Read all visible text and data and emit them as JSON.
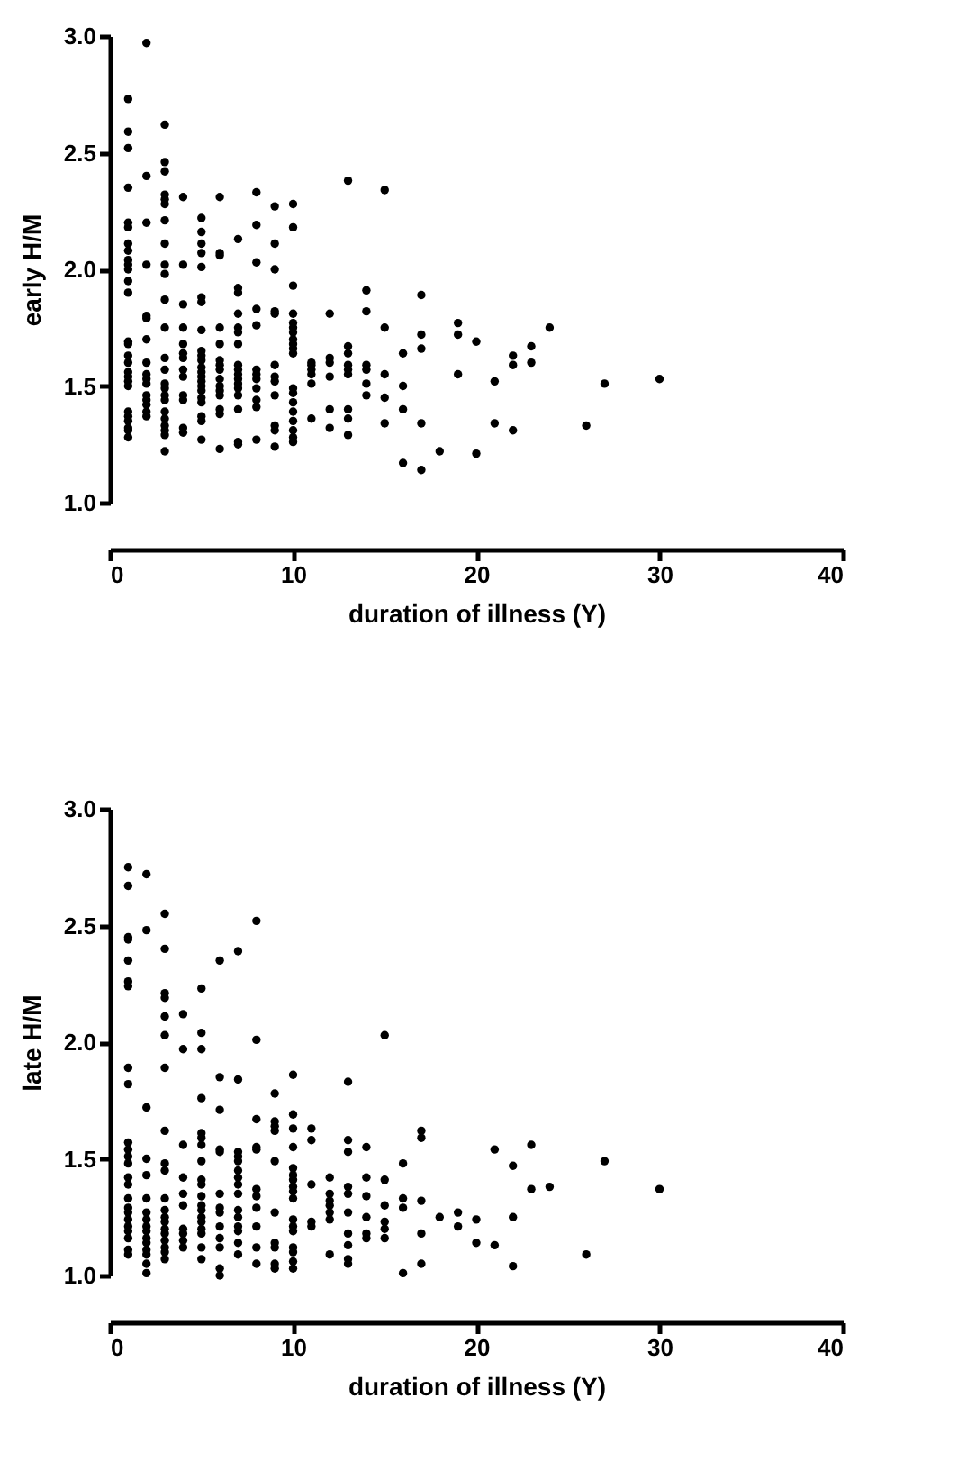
{
  "chart_data": [
    {
      "type": "scatter",
      "xlabel": "duration of illness  (Y)",
      "ylabel": "early H/M",
      "color": "#000000",
      "marker": "circle",
      "grid": false,
      "xlim": [
        0,
        40
      ],
      "xticks": [
        0,
        10,
        20,
        30,
        40
      ],
      "ylim": [
        1.0,
        3.0
      ],
      "yticks": [
        {
          "value": 1.0,
          "label": "1.0"
        },
        {
          "value": 1.5,
          "label": "1.5"
        },
        {
          "value": 2.0,
          "label": "2.0"
        },
        {
          "value": 2.5,
          "label": "2.5"
        },
        {
          "value": 3.0,
          "label": "3.0"
        }
      ],
      "x": [
        1,
        1,
        1,
        1,
        1,
        1,
        1,
        1,
        1,
        1,
        1,
        1,
        1,
        1,
        1,
        1,
        1,
        1,
        1,
        1,
        1,
        1,
        1,
        1,
        1,
        1,
        1,
        2,
        2,
        2,
        2,
        2,
        2,
        2,
        2,
        2,
        2,
        2,
        2,
        2,
        2,
        2,
        2,
        3,
        3,
        3,
        3,
        3,
        3,
        3,
        3,
        3,
        3,
        3,
        3,
        3,
        3,
        3,
        3,
        3,
        3,
        3,
        3,
        3,
        3,
        3,
        3,
        4,
        4,
        4,
        4,
        4,
        4,
        4,
        4,
        4,
        4,
        4,
        4,
        4,
        5,
        5,
        5,
        5,
        5,
        5,
        5,
        5,
        5,
        5,
        5,
        5,
        5,
        5,
        5,
        5,
        5,
        5,
        5,
        5,
        5,
        5,
        6,
        6,
        6,
        6,
        6,
        6,
        6,
        6,
        6,
        6,
        6,
        6,
        6,
        6,
        6,
        7,
        7,
        7,
        7,
        7,
        7,
        7,
        7,
        7,
        7,
        7,
        7,
        7,
        7,
        7,
        7,
        7,
        8,
        8,
        8,
        8,
        8,
        8,
        8,
        8,
        8,
        8,
        8,
        8,
        9,
        9,
        9,
        9,
        9,
        9,
        9,
        9,
        9,
        9,
        9,
        9,
        10,
        10,
        10,
        10,
        10,
        10,
        10,
        10,
        10,
        10,
        10,
        10,
        10,
        10,
        10,
        10,
        10,
        10,
        10,
        11,
        11,
        11,
        11,
        11,
        11,
        12,
        12,
        12,
        12,
        12,
        12,
        13,
        13,
        13,
        13,
        13,
        13,
        13,
        13,
        13,
        14,
        14,
        14,
        14,
        14,
        14,
        15,
        15,
        15,
        15,
        15,
        16,
        16,
        16,
        16,
        17,
        17,
        17,
        17,
        17,
        18,
        19,
        19,
        19,
        20,
        20,
        21,
        21,
        22,
        22,
        22,
        23,
        23,
        24,
        26,
        27,
        30
      ],
      "values": [
        2.73,
        2.59,
        2.52,
        2.35,
        2.2,
        2.18,
        2.11,
        2.08,
        2.04,
        2.02,
        2.0,
        1.95,
        1.9,
        1.69,
        1.68,
        1.63,
        1.6,
        1.56,
        1.54,
        1.52,
        1.5,
        1.39,
        1.37,
        1.35,
        1.32,
        1.31,
        1.28,
        2.97,
        2.4,
        2.2,
        2.02,
        1.8,
        1.79,
        1.7,
        1.6,
        1.55,
        1.53,
        1.51,
        1.46,
        1.44,
        1.42,
        1.39,
        1.37,
        2.62,
        2.46,
        2.42,
        2.32,
        2.3,
        2.28,
        2.21,
        2.11,
        2.02,
        1.98,
        1.87,
        1.75,
        1.62,
        1.57,
        1.51,
        1.49,
        1.46,
        1.44,
        1.39,
        1.36,
        1.33,
        1.31,
        1.29,
        1.22,
        2.31,
        2.02,
        1.85,
        1.75,
        1.68,
        1.64,
        1.62,
        1.57,
        1.54,
        1.46,
        1.44,
        1.32,
        1.3,
        2.22,
        2.16,
        2.11,
        2.07,
        2.01,
        1.88,
        1.86,
        1.74,
        1.65,
        1.63,
        1.61,
        1.58,
        1.56,
        1.54,
        1.52,
        1.5,
        1.48,
        1.45,
        1.43,
        1.37,
        1.35,
        1.27,
        2.31,
        2.07,
        2.06,
        1.75,
        1.68,
        1.61,
        1.59,
        1.57,
        1.53,
        1.5,
        1.48,
        1.46,
        1.4,
        1.38,
        1.23,
        2.13,
        1.92,
        1.9,
        1.81,
        1.75,
        1.73,
        1.68,
        1.59,
        1.57,
        1.55,
        1.53,
        1.51,
        1.49,
        1.46,
        1.4,
        1.26,
        1.25,
        2.33,
        2.19,
        2.03,
        1.83,
        1.76,
        1.57,
        1.55,
        1.53,
        1.49,
        1.44,
        1.41,
        1.27,
        2.27,
        2.11,
        2.0,
        1.82,
        1.81,
        1.59,
        1.54,
        1.52,
        1.46,
        1.33,
        1.31,
        1.24,
        2.28,
        2.18,
        1.93,
        1.81,
        1.77,
        1.75,
        1.73,
        1.7,
        1.68,
        1.66,
        1.64,
        1.49,
        1.47,
        1.43,
        1.39,
        1.35,
        1.31,
        1.28,
        1.26,
        1.6,
        1.59,
        1.57,
        1.55,
        1.51,
        1.36,
        1.81,
        1.62,
        1.6,
        1.54,
        1.4,
        1.32,
        2.38,
        1.67,
        1.64,
        1.59,
        1.57,
        1.55,
        1.4,
        1.36,
        1.29,
        1.91,
        1.82,
        1.59,
        1.57,
        1.51,
        1.46,
        2.34,
        1.75,
        1.55,
        1.45,
        1.34,
        1.64,
        1.5,
        1.4,
        1.17,
        1.89,
        1.72,
        1.66,
        1.34,
        1.14,
        1.22,
        1.77,
        1.72,
        1.55,
        1.69,
        1.21,
        1.52,
        1.34,
        1.63,
        1.59,
        1.31,
        1.67,
        1.6,
        1.75,
        1.33,
        1.51,
        1.53
      ]
    },
    {
      "type": "scatter",
      "xlabel": "duration of illness  (Y)",
      "ylabel": "late H/M",
      "color": "#000000",
      "marker": "circle",
      "grid": false,
      "xlim": [
        0,
        40
      ],
      "xticks": [
        0,
        10,
        20,
        30,
        40
      ],
      "ylim": [
        1.0,
        3.0
      ],
      "yticks": [
        {
          "value": 1.0,
          "label": "1.0"
        },
        {
          "value": 1.5,
          "label": "1.5"
        },
        {
          "value": 2.0,
          "label": "2.0"
        },
        {
          "value": 2.5,
          "label": "2.5"
        },
        {
          "value": 3.0,
          "label": "3.0"
        }
      ],
      "x": [
        1,
        1,
        1,
        1,
        1,
        1,
        1,
        1,
        1,
        1,
        1,
        1,
        1,
        1,
        1,
        1,
        1,
        1,
        1,
        1,
        1,
        1,
        1,
        1,
        2,
        2,
        2,
        2,
        2,
        2,
        2,
        2,
        2,
        2,
        2,
        2,
        2,
        2,
        2,
        2,
        3,
        3,
        3,
        3,
        3,
        3,
        3,
        3,
        3,
        3,
        3,
        3,
        3,
        3,
        3,
        3,
        3,
        3,
        3,
        3,
        4,
        4,
        4,
        4,
        4,
        4,
        4,
        4,
        4,
        4,
        5,
        5,
        5,
        5,
        5,
        5,
        5,
        5,
        5,
        5,
        5,
        5,
        5,
        5,
        5,
        5,
        5,
        5,
        5,
        6,
        6,
        6,
        6,
        6,
        6,
        6,
        6,
        6,
        6,
        6,
        6,
        6,
        7,
        7,
        7,
        7,
        7,
        7,
        7,
        7,
        7,
        7,
        7,
        7,
        7,
        7,
        7,
        8,
        8,
        8,
        8,
        8,
        8,
        8,
        8,
        8,
        8,
        8,
        9,
        9,
        9,
        9,
        9,
        9,
        9,
        9,
        9,
        9,
        10,
        10,
        10,
        10,
        10,
        10,
        10,
        10,
        10,
        10,
        10,
        10,
        10,
        10,
        10,
        10,
        10,
        11,
        11,
        11,
        11,
        11,
        12,
        12,
        12,
        12,
        12,
        12,
        12,
        13,
        13,
        13,
        13,
        13,
        13,
        13,
        13,
        13,
        13,
        14,
        14,
        14,
        14,
        14,
        14,
        15,
        15,
        15,
        15,
        15,
        15,
        16,
        16,
        16,
        16,
        17,
        17,
        17,
        17,
        17,
        18,
        19,
        19,
        20,
        20,
        21,
        21,
        22,
        22,
        22,
        23,
        23,
        24,
        26,
        27,
        30
      ],
      "values": [
        2.75,
        2.67,
        2.45,
        2.44,
        2.35,
        2.26,
        2.24,
        1.89,
        1.82,
        1.57,
        1.54,
        1.51,
        1.48,
        1.42,
        1.39,
        1.33,
        1.29,
        1.27,
        1.24,
        1.21,
        1.19,
        1.16,
        1.11,
        1.09,
        2.72,
        2.48,
        1.72,
        1.5,
        1.43,
        1.33,
        1.27,
        1.24,
        1.21,
        1.19,
        1.16,
        1.14,
        1.11,
        1.09,
        1.05,
        1.01,
        2.55,
        2.4,
        2.21,
        2.19,
        2.11,
        2.03,
        1.89,
        1.62,
        1.48,
        1.45,
        1.33,
        1.28,
        1.25,
        1.23,
        1.2,
        1.18,
        1.15,
        1.12,
        1.1,
        1.07,
        2.12,
        1.97,
        1.56,
        1.42,
        1.35,
        1.3,
        1.2,
        1.18,
        1.15,
        1.12,
        2.23,
        2.04,
        1.97,
        1.76,
        1.61,
        1.59,
        1.56,
        1.49,
        1.41,
        1.39,
        1.34,
        1.3,
        1.28,
        1.25,
        1.23,
        1.2,
        1.18,
        1.12,
        1.07,
        2.35,
        1.85,
        1.71,
        1.54,
        1.53,
        1.35,
        1.29,
        1.27,
        1.21,
        1.16,
        1.12,
        1.03,
        1.0,
        2.39,
        1.84,
        1.53,
        1.51,
        1.49,
        1.45,
        1.42,
        1.39,
        1.35,
        1.28,
        1.25,
        1.21,
        1.19,
        1.14,
        1.09,
        2.52,
        2.01,
        1.67,
        1.55,
        1.54,
        1.37,
        1.34,
        1.29,
        1.21,
        1.12,
        1.05,
        1.78,
        1.66,
        1.64,
        1.62,
        1.49,
        1.27,
        1.14,
        1.12,
        1.05,
        1.03,
        1.86,
        1.69,
        1.63,
        1.55,
        1.46,
        1.43,
        1.41,
        1.38,
        1.36,
        1.33,
        1.24,
        1.21,
        1.19,
        1.12,
        1.1,
        1.06,
        1.03,
        1.63,
        1.58,
        1.39,
        1.23,
        1.21,
        1.42,
        1.35,
        1.32,
        1.3,
        1.27,
        1.24,
        1.09,
        1.83,
        1.58,
        1.53,
        1.38,
        1.35,
        1.27,
        1.18,
        1.13,
        1.07,
        1.05,
        1.55,
        1.42,
        1.34,
        1.25,
        1.18,
        1.16,
        2.03,
        1.41,
        1.3,
        1.23,
        1.2,
        1.16,
        1.48,
        1.33,
        1.29,
        1.01,
        1.62,
        1.59,
        1.32,
        1.18,
        1.05,
        1.25,
        1.27,
        1.21,
        1.24,
        1.14,
        1.54,
        1.13,
        1.47,
        1.25,
        1.04,
        1.56,
        1.37,
        1.38,
        1.09,
        1.49,
        1.37
      ]
    }
  ]
}
